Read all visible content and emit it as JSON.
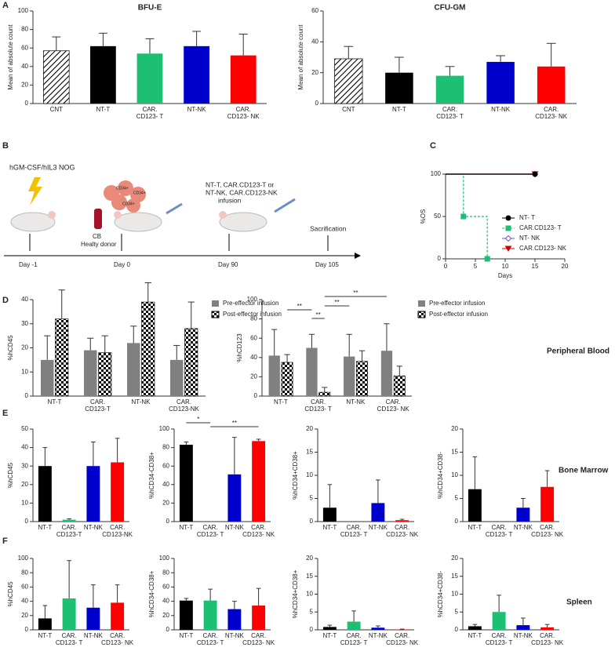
{
  "panel_labels": [
    "A",
    "B",
    "C",
    "D",
    "E",
    "F"
  ],
  "row_labels": [
    "Peripheral Blood",
    "Bone Marrow",
    "Spleen"
  ],
  "schematic": {
    "mouse_model": "hGM-CSF/hIL3 NOG",
    "cell_label": "CD34+",
    "donor": [
      "CB",
      "Healty donor"
    ],
    "infusion": [
      "NT-T, CAR.CD123-T or",
      "NT-NK, CAR.CD123-NK",
      "infusion"
    ],
    "end": "Sacrification",
    "days": [
      "Day -1",
      "Day 0",
      "Day 90",
      "Day 105"
    ]
  },
  "chart_data": [
    {
      "type": "bar",
      "title": "BFU-E",
      "ylabel": "Mean of absolute count",
      "categories": [
        "CNT",
        "NT-T",
        "CAR.\nCD123- T",
        "NT-NK",
        "CAR.\nCD123- NK"
      ],
      "values": [
        57,
        62,
        54,
        62,
        52
      ],
      "errors": [
        15,
        14,
        16,
        16,
        23
      ],
      "colors": [
        "#ffffff",
        "#000000",
        "#1dbf73",
        "#0000cc",
        "#ff0000"
      ],
      "hatched_categories": [
        "CNT"
      ],
      "ylim": [
        0,
        100
      ],
      "yticks": [
        0,
        20,
        40,
        60,
        80,
        100
      ]
    },
    {
      "type": "bar",
      "title": "CFU-GM",
      "ylabel": "Mean of absolute count",
      "categories": [
        "CNT",
        "NT-T",
        "CAR.\nCD123- T",
        "NT-NK",
        "CAR.\nCD123- NK"
      ],
      "values": [
        29,
        20,
        18,
        27,
        24
      ],
      "errors": [
        8,
        10,
        6,
        4,
        15
      ],
      "colors": [
        "#ffffff",
        "#000000",
        "#1dbf73",
        "#0000cc",
        "#ff0000"
      ],
      "hatched_categories": [
        "CNT"
      ],
      "ylim": [
        0,
        60
      ],
      "yticks": [
        0,
        20,
        40,
        60
      ]
    },
    {
      "type": "line",
      "ylabel": "%OS",
      "xlabel": "Days",
      "series": [
        {
          "name": "NT- T",
          "color": "#000000",
          "marker": "circle",
          "x": [
            0,
            15
          ],
          "values": [
            100,
            100
          ]
        },
        {
          "name": "CAR.CD123- T",
          "color": "#1dbf73",
          "marker": "square",
          "dashed": true,
          "x": [
            0,
            3,
            7
          ],
          "values": [
            100,
            50,
            0
          ]
        },
        {
          "name": "NT- NK",
          "color": "#6a5acd",
          "marker": "diamond",
          "x": [
            0,
            15
          ],
          "values": [
            100,
            100
          ]
        },
        {
          "name": "CAR.CD123- NK",
          "color": "#cc0000",
          "marker": "triangle",
          "x": [
            0,
            15
          ],
          "values": [
            100,
            100
          ]
        }
      ],
      "xlim": [
        0,
        20
      ],
      "xticks": [
        0,
        5,
        10,
        15,
        20
      ],
      "ylim": [
        0,
        100
      ],
      "yticks": [
        0,
        50,
        100
      ]
    },
    {
      "type": "bar",
      "ylabel": "%hCD45",
      "categories": [
        "NT-T",
        "CAR.\nCD123-T",
        "NT-NK",
        "CAR.\nCD123-NK"
      ],
      "series": [
        {
          "name": "Pre-effector infusion",
          "color": "#808080",
          "values": [
            15,
            19,
            22,
            15
          ],
          "errors": [
            10,
            5,
            7,
            6
          ]
        },
        {
          "name": "Post-effector infusion",
          "color": "#000000",
          "pattern": "checkered",
          "values": [
            32,
            18,
            39,
            28
          ],
          "errors": [
            12,
            7,
            8,
            11
          ]
        }
      ],
      "ylim": [
        0,
        40
      ],
      "yticks": [
        0,
        10,
        20,
        30,
        40
      ]
    },
    {
      "type": "bar",
      "ylabel": "%hCD123",
      "categories": [
        "NT-T",
        "CAR.\nCD123- T",
        "NT-NK",
        "CAR.\nCD123- NK"
      ],
      "series": [
        {
          "name": "Pre-effector infusion",
          "color": "#808080",
          "values": [
            42,
            50,
            41,
            47
          ],
          "errors": [
            27,
            14,
            23,
            28
          ]
        },
        {
          "name": "Post-effector infusion",
          "color": "#000000",
          "pattern": "checkered",
          "values": [
            35,
            4,
            36,
            21
          ],
          "errors": [
            8,
            5,
            11,
            10
          ]
        }
      ],
      "annotations": [
        "**",
        "**",
        "**",
        "**"
      ],
      "ylim": [
        0,
        100
      ],
      "yticks": [
        0,
        20,
        40,
        60,
        80,
        100
      ]
    },
    {
      "type": "bar",
      "ylabel": "%hCD45",
      "categories": [
        "NT-T",
        "CAR.\nCD123-T",
        "NT-NK",
        "CAR.\nCD123-NK"
      ],
      "values": [
        30,
        1,
        30,
        32
      ],
      "errors": [
        10,
        0.5,
        13,
        13
      ],
      "colors": [
        "#000000",
        "#1dbf73",
        "#0000cc",
        "#ff0000"
      ],
      "ylim": [
        0,
        50
      ],
      "yticks": [
        0,
        10,
        20,
        30,
        40,
        50
      ]
    },
    {
      "type": "bar",
      "ylabel": "%hCD34-CD38+",
      "categories": [
        "NT-T",
        "CAR.\nCD123- T",
        "NT-NK",
        "CAR.\nCD123- NK"
      ],
      "values": [
        83,
        0,
        51,
        87
      ],
      "errors": [
        3,
        0,
        40,
        2
      ],
      "colors": [
        "#000000",
        "#1dbf73",
        "#0000cc",
        "#ff0000"
      ],
      "annotations": [
        "*",
        "**"
      ],
      "ylim": [
        0,
        100
      ],
      "yticks": [
        0,
        20,
        40,
        60,
        80,
        100
      ]
    },
    {
      "type": "bar",
      "ylabel": "%hCD34+CD38+",
      "categories": [
        "NT-T",
        "CAR.\nCD123- T",
        "NT-NK",
        "CAR.\nCD123- NK"
      ],
      "values": [
        3,
        0,
        4,
        0.3
      ],
      "errors": [
        5,
        0,
        5,
        0.2
      ],
      "colors": [
        "#000000",
        "#1dbf73",
        "#0000cc",
        "#ff0000"
      ],
      "ylim": [
        0,
        20
      ],
      "yticks": [
        0,
        5,
        10,
        15,
        20
      ]
    },
    {
      "type": "bar",
      "ylabel": "%hCD34+CD38-",
      "categories": [
        "NT-T",
        "CAR.\nCD123- T",
        "NT-NK",
        "CAR.\nCD123- NK"
      ],
      "values": [
        7,
        0,
        3,
        7.5
      ],
      "errors": [
        7,
        0,
        2,
        3.5
      ],
      "colors": [
        "#000000",
        "#1dbf73",
        "#0000cc",
        "#ff0000"
      ],
      "ylim": [
        0,
        20
      ],
      "yticks": [
        0,
        5,
        10,
        15,
        20
      ]
    },
    {
      "type": "bar",
      "ylabel": "%hCD45",
      "categories": [
        "NT-T",
        "CAR.\nCD123- T",
        "NT-NK",
        "CAR.\nCD123- NK"
      ],
      "values": [
        16,
        44,
        31,
        38
      ],
      "errors": [
        18,
        53,
        32,
        25
      ],
      "colors": [
        "#000000",
        "#1dbf73",
        "#0000cc",
        "#ff0000"
      ],
      "ylim": [
        0,
        100
      ],
      "yticks": [
        0,
        20,
        40,
        60,
        80,
        100
      ]
    },
    {
      "type": "bar",
      "ylabel": "%hCD34-CD38+",
      "categories": [
        "NT-T",
        "CAR.\nCD123- T",
        "NT-NK",
        "CAR.\nCD123- NK"
      ],
      "values": [
        41,
        41,
        29,
        34
      ],
      "errors": [
        3,
        16,
        11,
        24
      ],
      "colors": [
        "#000000",
        "#1dbf73",
        "#0000cc",
        "#ff0000"
      ],
      "ylim": [
        0,
        100
      ],
      "yticks": [
        0,
        20,
        40,
        60,
        80,
        100
      ]
    },
    {
      "type": "bar",
      "ylabel": "%hCD34+CD38+",
      "categories": [
        "NT-T",
        "CAR.\nCD123- T",
        "NT-NK",
        "CAR.\nCD123- NK"
      ],
      "values": [
        0.8,
        2.3,
        0.6,
        0.1
      ],
      "errors": [
        0.5,
        3,
        0.5,
        0.1
      ],
      "colors": [
        "#000000",
        "#1dbf73",
        "#0000cc",
        "#ff0000"
      ],
      "ylim": [
        0,
        20
      ],
      "yticks": [
        0,
        5,
        10,
        15,
        20
      ]
    },
    {
      "type": "bar",
      "ylabel": "%hCD34+CD38-",
      "categories": [
        "NT-T",
        "CAR.\nCD123- T",
        "NT-NK",
        "CAR.\nCD123- NK"
      ],
      "values": [
        1,
        5,
        1.3,
        0.7
      ],
      "errors": [
        0.5,
        4.7,
        2,
        0.8
      ],
      "colors": [
        "#000000",
        "#1dbf73",
        "#0000cc",
        "#ff0000"
      ],
      "ylim": [
        0,
        20
      ],
      "yticks": [
        0,
        5,
        10,
        15,
        20
      ]
    }
  ]
}
